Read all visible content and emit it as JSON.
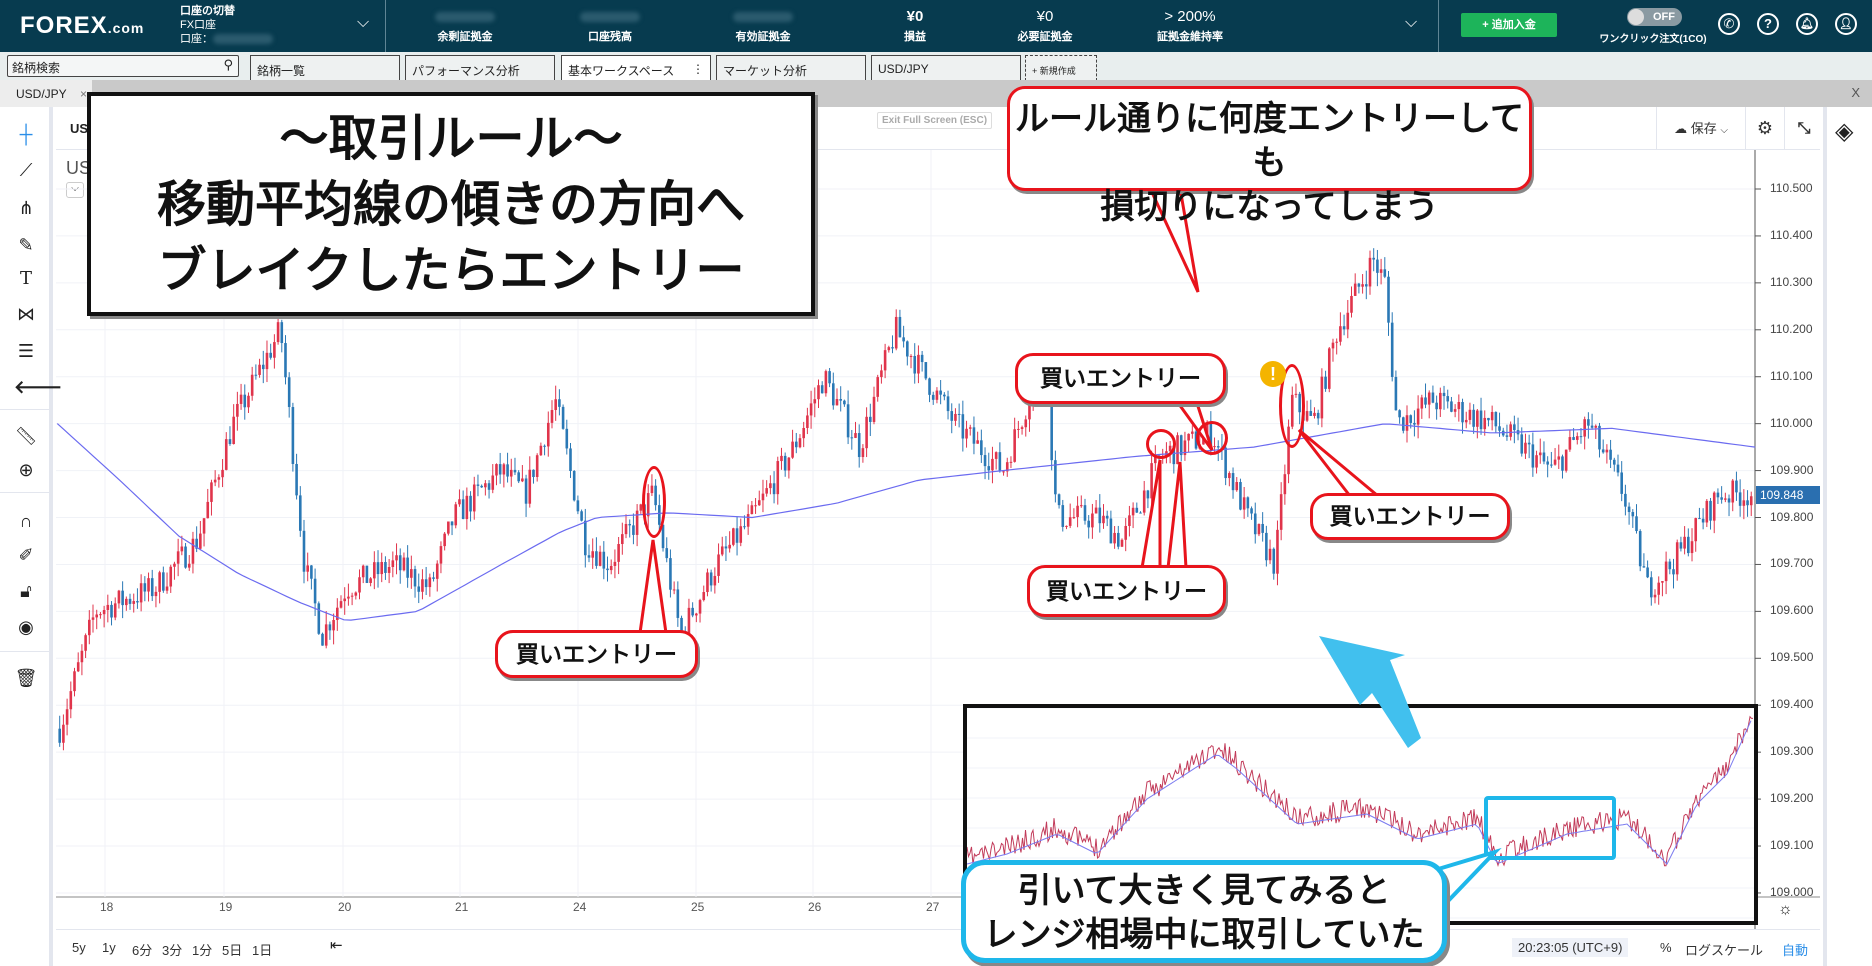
{
  "topbar": {
    "logo_main": "FOREX",
    "logo_suffix": ".com",
    "switch_label": "口座の切替",
    "account_type": "FX口座",
    "account_label": "口座：",
    "metrics": [
      {
        "label": "余剰証拠金",
        "value": ""
      },
      {
        "label": "口座残高",
        "value": ""
      },
      {
        "label": "有効証拠金",
        "value": ""
      },
      {
        "label": "損益",
        "value": "¥0"
      },
      {
        "label": "必要証拠金",
        "value": "¥0"
      },
      {
        "label": "証拠金維持率",
        "value": "> 200%"
      }
    ],
    "deposit_button": "+ 追加入金",
    "oneclick_toggle": "OFF",
    "oneclick_label": "ワンクリック注文(1CO)",
    "icons": [
      "phone-icon",
      "help-icon",
      "bell-icon",
      "user-icon"
    ]
  },
  "tabs": {
    "search_placeholder": "銘柄検索",
    "items": [
      "銘柄一覧",
      "パフォーマンス分析",
      "基本ワークスペース",
      "マーケット分析",
      "USD/JPY"
    ],
    "active": "基本ワークスペース",
    "new_tab": "+ 新規作成"
  },
  "chart_tab": {
    "label": "USD/JPY",
    "close": "×",
    "window_close": "X"
  },
  "chart_header": {
    "symbol": "USD",
    "symbol2": "US",
    "exit_fullscreen": "Exit Full Screen (ESC)",
    "save": "保存"
  },
  "price_axis": {
    "labels": [
      "110.500",
      "110.400",
      "110.300",
      "110.200",
      "110.100",
      "110.000",
      "109.900",
      "109.800",
      "109.700",
      "109.600",
      "109.500",
      "109.400",
      "109.300",
      "109.200",
      "109.100",
      "109.000"
    ],
    "last_price": "109.848",
    "last_price_color": "#2a6fb0"
  },
  "time_axis": {
    "labels": [
      "18",
      "19",
      "20",
      "21",
      "24",
      "25",
      "26",
      "27"
    ]
  },
  "bottom": {
    "timeframes": [
      "5y",
      "1y",
      "6分",
      "3分",
      "1分",
      "5日",
      "1日"
    ],
    "clock": "20:23:05 (UTC+9)",
    "percent": "%",
    "log_scale": "ログスケール",
    "auto": "自動"
  },
  "colors": {
    "topbar": "#073b4f",
    "up_candle": "#e0344b",
    "down_candle": "#2a78b5",
    "moving_average": "#6b6bf0",
    "annotation_red": "#e8141c",
    "annotation_cyan": "#1eb7ea"
  },
  "annotations": {
    "rule_box": [
      "～取引ルール～",
      "移動平均線の傾きの方向へ",
      "ブレイクしたらエントリー"
    ],
    "loss_bubble": [
      "ルール通りに何度エントリーしても",
      "損切りになってしまう"
    ],
    "buy_entry": "買いエントリー",
    "range_bubble": [
      "引いて大きく見てみると",
      "レンジ相場中に取引していた"
    ]
  }
}
